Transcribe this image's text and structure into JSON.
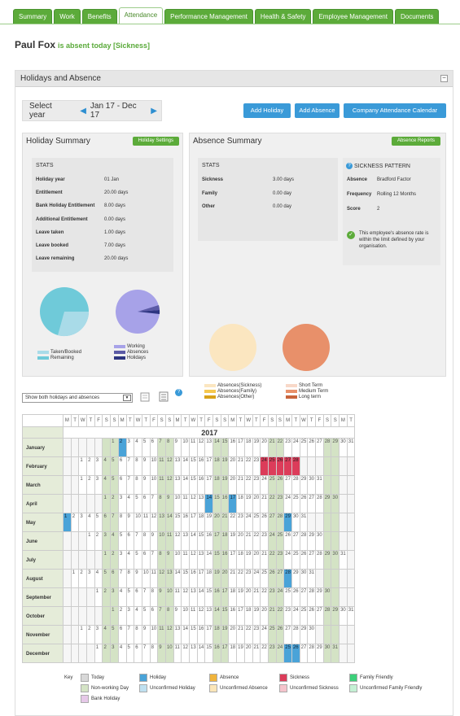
{
  "tabs": [
    "Summary",
    "Work",
    "Benefits",
    "Attendance",
    "Performance Management",
    "Health & Safety",
    "Employee Management",
    "Documents"
  ],
  "employee": {
    "name": "Paul Fox",
    "status": "is absent today [Sickness]"
  },
  "panel": {
    "title": "Holidays and Absence",
    "collapse": "−"
  },
  "year": {
    "label": "Select year",
    "range": "Jan 17 - Dec 17",
    "prev": "◀",
    "next": "▶"
  },
  "buttons": {
    "add_holiday": "Add Holiday",
    "add_absence": "Add Absence",
    "calendar": "Company Attendance Calendar"
  },
  "holiday": {
    "title": "Holiday Summary",
    "settings": "Holiday Settings",
    "stats_title": "STATS",
    "rows": [
      [
        "Holiday year",
        "01 Jan"
      ],
      [
        "Entitlement",
        "20.00 days"
      ],
      [
        "Bank Holiday Entitlement",
        "8.00 days"
      ],
      [
        "Additional Entitlement",
        "0.00 days"
      ],
      [
        "Leave taken",
        "1.00 days"
      ],
      [
        "Leave booked",
        "7.00 days"
      ],
      [
        "Leave remaining",
        "20.00 days"
      ]
    ],
    "legend1": [
      "Taken/Booked",
      "Remaining"
    ],
    "legend2": [
      "Working",
      "Absences",
      "Holidays"
    ],
    "legend1_colors": [
      "#a9dbe8",
      "#6fcad9"
    ],
    "legend2_colors": [
      "#a7a2e8",
      "#5b5aa6",
      "#2d3580"
    ]
  },
  "absence": {
    "title": "Absence Summary",
    "reports": "Absence Reports",
    "stats_title": "STATS",
    "rows": [
      [
        "Sickness",
        "3.00 days"
      ],
      [
        "Family",
        "0.00 day"
      ],
      [
        "Other",
        "0.00 day"
      ]
    ],
    "legend1": [
      "Absences(Sickness)",
      "Absences(Family)",
      "Absences(Other)"
    ],
    "legend2": [
      "Short Term",
      "Medium Term",
      "Long term"
    ],
    "legend1_colors": [
      "#fbe6c0",
      "#f5c84f",
      "#d8a21a"
    ],
    "legend2_colors": [
      "#f8d8c8",
      "#e8906a",
      "#c8643c"
    ]
  },
  "pattern": {
    "title": "SICKNESS PATTERN",
    "rows": [
      [
        "Absence",
        "Bradford Factor"
      ],
      [
        "Frequency",
        "Rolling 12 Months"
      ],
      [
        "Score",
        "2"
      ]
    ],
    "note": "This employee's absence rate is within the limit defined by your organisation."
  },
  "view_select": "Show both holidays and absences",
  "calendar": {
    "year": "2017",
    "dow": [
      "M",
      "T",
      "W",
      "T",
      "F",
      "S",
      "S"
    ],
    "months": [
      [
        "January",
        6,
        31
      ],
      [
        "February",
        2,
        28
      ],
      [
        "March",
        2,
        31
      ],
      [
        "April",
        5,
        30
      ],
      [
        "May",
        0,
        31
      ],
      [
        "June",
        3,
        30
      ],
      [
        "July",
        5,
        31
      ],
      [
        "August",
        1,
        31
      ],
      [
        "September",
        4,
        30
      ],
      [
        "October",
        6,
        31
      ],
      [
        "November",
        2,
        30
      ],
      [
        "December",
        4,
        31
      ]
    ]
  },
  "key": [
    [
      "Today",
      "#d8d8d8"
    ],
    [
      "Holiday",
      "#4aa3d8"
    ],
    [
      "Absence",
      "#f0b43c"
    ],
    [
      "Sickness",
      "#dc3c5a"
    ],
    [
      "Family Friendly",
      "#3cd07a"
    ],
    [
      "Non-working Day",
      "#d4e3c5"
    ],
    [
      "Unconfirmed Holiday",
      "#bfe0f0"
    ],
    [
      "Unconfirmed Absence",
      "#fbe6b8"
    ],
    [
      "Unconfirmed Sickness",
      "#f5c4cc"
    ],
    [
      "Unconfirmed Family Friendly",
      "#c4f0d4"
    ],
    [
      "Bank Holiday",
      "#e6c8e8"
    ]
  ]
}
